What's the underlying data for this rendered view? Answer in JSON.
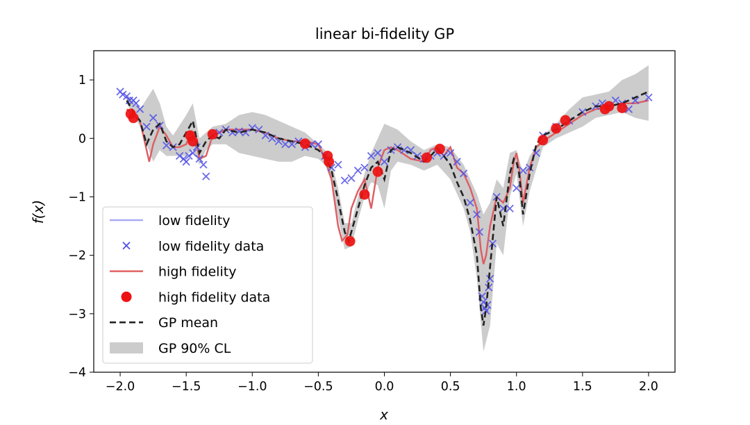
{
  "chart_data": {
    "type": "line",
    "title": "linear bi-fidelity GP",
    "xlabel": "x",
    "ylabel": "f(x)",
    "xlim": [
      -2.2,
      2.2
    ],
    "ylim": [
      -4,
      1.5
    ],
    "xticks": [
      -2.0,
      -1.5,
      -1.0,
      -0.5,
      0.0,
      0.5,
      1.0,
      1.5,
      2.0
    ],
    "xtick_labels": [
      "−2.0",
      "−1.5",
      "−1.0",
      "−0.5",
      "0.0",
      "0.5",
      "1.0",
      "1.5",
      "2.0"
    ],
    "yticks": [
      1,
      0,
      -1,
      -2,
      -3,
      -4
    ],
    "ytick_labels": [
      "1",
      "0",
      "−1",
      "−2",
      "−3",
      "−4"
    ],
    "grid": false,
    "legend_position": "lower-left",
    "colors": {
      "low_fidelity": "#aaaaf2",
      "low_fidelity_data": "#5050e8",
      "high_fidelity": "#e05a5a",
      "high_fidelity_data": "#ee1111",
      "gp_mean": "#222222",
      "gp_band": "#cccccc"
    },
    "series": [
      {
        "name": "low fidelity",
        "style": "line",
        "x": [
          -2.0,
          -1.95,
          -1.9,
          -1.85,
          -1.8,
          -1.75,
          -1.7,
          -1.65,
          -1.6,
          -1.55,
          -1.5,
          -1.45,
          -1.4,
          -1.35,
          -1.3,
          -1.25,
          -1.2,
          -1.1,
          -1.0,
          -0.9,
          -0.8,
          -0.7,
          -0.6,
          -0.5,
          -0.45,
          -0.4,
          -0.35,
          -0.3,
          -0.25,
          -0.2,
          -0.15,
          -0.1,
          -0.05,
          0.0,
          0.05,
          0.1,
          0.2,
          0.3,
          0.4,
          0.45,
          0.5,
          0.55,
          0.6,
          0.65,
          0.7,
          0.72,
          0.74,
          0.76,
          0.78,
          0.8,
          0.82,
          0.85,
          0.88,
          0.9,
          0.95,
          1.0,
          1.05,
          1.1,
          1.15,
          1.2,
          1.3,
          1.4,
          1.5,
          1.6,
          1.7,
          1.8,
          1.9,
          2.0
        ],
        "y": [
          0.78,
          0.7,
          0.6,
          0.3,
          0.1,
          0.35,
          0.25,
          0.0,
          -0.15,
          -0.2,
          -0.4,
          -0.2,
          -0.3,
          -0.65,
          0.1,
          0.1,
          0.15,
          0.1,
          0.18,
          0.1,
          0.0,
          -0.1,
          -0.1,
          -0.3,
          -0.35,
          -0.5,
          -0.7,
          -1.0,
          -0.85,
          -0.65,
          -0.5,
          -0.35,
          -0.25,
          -0.5,
          -0.2,
          -0.2,
          -0.25,
          -0.3,
          -0.25,
          -0.35,
          -0.4,
          -0.8,
          -1.1,
          -1.3,
          -1.8,
          -2.2,
          -2.8,
          -2.9,
          -2.7,
          -2.4,
          -1.8,
          -1.0,
          -1.1,
          -1.3,
          -0.9,
          -0.45,
          -1.1,
          -0.5,
          -0.1,
          0.1,
          0.2,
          0.3,
          0.45,
          0.55,
          0.6,
          0.6,
          0.65,
          0.7
        ]
      },
      {
        "name": "low fidelity data",
        "style": "marker-x",
        "x": [
          -2.0,
          -1.98,
          -1.95,
          -1.93,
          -1.9,
          -1.88,
          -1.85,
          -1.8,
          -1.75,
          -1.7,
          -1.65,
          -1.6,
          -1.55,
          -1.52,
          -1.5,
          -1.48,
          -1.45,
          -1.42,
          -1.4,
          -1.37,
          -1.35,
          -1.3,
          -1.25,
          -1.2,
          -1.15,
          -1.1,
          -1.05,
          -1.0,
          -0.95,
          -0.9,
          -0.85,
          -0.8,
          -0.75,
          -0.7,
          -0.65,
          -0.6,
          -0.55,
          -0.5,
          -0.45,
          -0.4,
          -0.35,
          -0.3,
          -0.25,
          -0.2,
          -0.15,
          -0.1,
          -0.05,
          0.0,
          0.05,
          0.1,
          0.15,
          0.2,
          0.25,
          0.3,
          0.35,
          0.4,
          0.45,
          0.5,
          0.55,
          0.6,
          0.65,
          0.7,
          0.72,
          0.74,
          0.75,
          0.76,
          0.77,
          0.78,
          0.79,
          0.8,
          0.82,
          0.85,
          0.9,
          0.95,
          1.0,
          1.05,
          1.1,
          1.15,
          1.2,
          1.3,
          1.4,
          1.5,
          1.6,
          1.65,
          1.7,
          1.75,
          1.8,
          1.85,
          1.9,
          2.0
        ],
        "y": [
          0.8,
          0.75,
          0.72,
          0.65,
          0.65,
          0.6,
          0.5,
          0.2,
          0.35,
          0.22,
          -0.12,
          -0.15,
          -0.3,
          -0.35,
          -0.4,
          -0.3,
          -0.25,
          -0.15,
          -0.35,
          -0.45,
          -0.65,
          0.05,
          0.1,
          0.15,
          0.1,
          0.12,
          0.1,
          0.18,
          0.15,
          0.05,
          0.0,
          -0.05,
          -0.1,
          -0.1,
          -0.05,
          -0.15,
          -0.1,
          -0.1,
          -0.3,
          -0.5,
          -0.45,
          -0.72,
          -0.68,
          -0.55,
          -0.5,
          -0.3,
          -0.25,
          -0.4,
          -0.2,
          -0.15,
          -0.2,
          -0.2,
          -0.3,
          -0.35,
          -0.3,
          -0.25,
          -0.3,
          -0.25,
          -0.4,
          -0.6,
          -1.1,
          -1.3,
          -1.6,
          -2.7,
          -2.8,
          -2.9,
          -2.95,
          -2.85,
          -2.55,
          -2.4,
          -1.8,
          -1.0,
          -1.2,
          -1.2,
          -0.85,
          -0.55,
          -0.5,
          -0.25,
          0.05,
          0.2,
          0.3,
          0.45,
          0.55,
          0.6,
          0.55,
          0.65,
          0.6,
          0.5,
          0.65,
          0.7
        ]
      },
      {
        "name": "high fidelity",
        "style": "line",
        "x": [
          -1.95,
          -1.9,
          -1.85,
          -1.8,
          -1.78,
          -1.75,
          -1.7,
          -1.65,
          -1.6,
          -1.55,
          -1.5,
          -1.47,
          -1.45,
          -1.42,
          -1.4,
          -1.35,
          -1.3,
          -1.25,
          -1.2,
          -1.1,
          -1.0,
          -0.9,
          -0.8,
          -0.7,
          -0.6,
          -0.5,
          -0.45,
          -0.4,
          -0.35,
          -0.32,
          -0.28,
          -0.25,
          -0.2,
          -0.15,
          -0.1,
          -0.05,
          0.0,
          0.05,
          0.1,
          0.2,
          0.3,
          0.35,
          0.4,
          0.45,
          0.5,
          0.55,
          0.6,
          0.65,
          0.7,
          0.73,
          0.75,
          0.77,
          0.8,
          0.85,
          0.9,
          0.95,
          0.98,
          1.0,
          1.02,
          1.05,
          1.1,
          1.15,
          1.2,
          1.3,
          1.4,
          1.5,
          1.6,
          1.7,
          1.8,
          1.9,
          2.0
        ],
        "y": [
          0.5,
          0.4,
          0.3,
          -0.2,
          -0.4,
          -0.1,
          0.2,
          0.05,
          -0.15,
          -0.15,
          -0.1,
          0.1,
          0.05,
          -0.1,
          -0.35,
          -0.3,
          0.05,
          0.1,
          0.15,
          0.15,
          0.15,
          0.1,
          0.0,
          -0.05,
          -0.05,
          -0.1,
          -0.35,
          -0.7,
          -1.5,
          -1.75,
          -1.65,
          -1.2,
          -0.9,
          -0.7,
          -1.2,
          -0.5,
          -0.2,
          -0.15,
          -0.2,
          -0.35,
          -0.4,
          -0.2,
          -0.15,
          -0.3,
          -0.15,
          -0.5,
          -0.6,
          -0.85,
          -1.2,
          -1.9,
          -2.15,
          -2.0,
          -1.5,
          -1.0,
          -1.1,
          -0.85,
          -0.4,
          -0.25,
          -0.5,
          -1.1,
          -0.5,
          -0.15,
          -0.05,
          0.1,
          0.25,
          0.4,
          0.5,
          0.55,
          0.6,
          0.6,
          0.65
        ]
      },
      {
        "name": "high fidelity data",
        "style": "marker-dot",
        "x": [
          -1.92,
          -1.9,
          -1.47,
          -1.45,
          -1.3,
          -0.6,
          -0.43,
          -0.42,
          -0.26,
          -0.15,
          -0.05,
          0.32,
          0.42,
          1.2,
          1.3,
          1.37,
          1.67,
          1.7,
          1.8
        ],
        "y": [
          0.42,
          0.35,
          0.05,
          -0.05,
          0.07,
          -0.09,
          -0.3,
          -0.4,
          -1.76,
          -0.96,
          -0.57,
          -0.33,
          -0.18,
          -0.03,
          0.17,
          0.31,
          0.5,
          0.55,
          0.52
        ]
      },
      {
        "name": "GP mean",
        "style": "dashed",
        "x": [
          -1.95,
          -1.9,
          -1.85,
          -1.8,
          -1.75,
          -1.7,
          -1.65,
          -1.6,
          -1.55,
          -1.5,
          -1.45,
          -1.4,
          -1.35,
          -1.3,
          -1.25,
          -1.2,
          -1.1,
          -1.0,
          -0.9,
          -0.8,
          -0.7,
          -0.6,
          -0.5,
          -0.45,
          -0.4,
          -0.35,
          -0.3,
          -0.27,
          -0.25,
          -0.2,
          -0.15,
          -0.1,
          -0.05,
          0.0,
          0.05,
          0.1,
          0.2,
          0.3,
          0.35,
          0.4,
          0.45,
          0.5,
          0.55,
          0.6,
          0.65,
          0.7,
          0.73,
          0.75,
          0.77,
          0.8,
          0.85,
          0.9,
          0.95,
          0.98,
          1.0,
          1.02,
          1.05,
          1.1,
          1.15,
          1.2,
          1.3,
          1.4,
          1.5,
          1.6,
          1.7,
          1.8,
          1.9,
          2.0
        ],
        "y": [
          0.65,
          0.45,
          0.3,
          -0.1,
          0.15,
          0.25,
          -0.05,
          -0.15,
          -0.1,
          0.1,
          0.3,
          -0.25,
          -0.05,
          0.05,
          0.0,
          0.15,
          0.1,
          0.15,
          0.1,
          0.0,
          -0.05,
          -0.1,
          -0.2,
          -0.3,
          -0.55,
          -1.05,
          -1.6,
          -1.76,
          -1.6,
          -1.2,
          -0.8,
          -0.5,
          -0.4,
          -0.7,
          -0.2,
          -0.15,
          -0.25,
          -0.4,
          -0.3,
          -0.18,
          -0.3,
          -0.45,
          -0.75,
          -1.0,
          -1.4,
          -2.0,
          -2.9,
          -3.2,
          -2.9,
          -2.2,
          -1.0,
          -1.5,
          -0.6,
          -0.35,
          -0.4,
          -0.6,
          -1.3,
          -0.6,
          -0.1,
          0.05,
          0.15,
          0.3,
          0.45,
          0.55,
          0.55,
          0.6,
          0.7,
          0.8
        ]
      },
      {
        "name": "GP 90% CL",
        "style": "band",
        "x": [
          -1.95,
          -1.85,
          -1.75,
          -1.7,
          -1.65,
          -1.6,
          -1.5,
          -1.45,
          -1.4,
          -1.35,
          -1.3,
          -1.2,
          -1.1,
          -1.0,
          -0.9,
          -0.8,
          -0.7,
          -0.6,
          -0.5,
          -0.45,
          -0.4,
          -0.35,
          -0.3,
          -0.25,
          -0.2,
          -0.15,
          -0.1,
          -0.05,
          0.0,
          0.05,
          0.1,
          0.2,
          0.3,
          0.4,
          0.5,
          0.6,
          0.65,
          0.7,
          0.75,
          0.8,
          0.85,
          0.9,
          0.95,
          1.0,
          1.05,
          1.1,
          1.2,
          1.3,
          1.4,
          1.5,
          1.6,
          1.7,
          1.8,
          1.9,
          2.0
        ],
        "upper": [
          0.75,
          0.5,
          0.85,
          0.6,
          0.2,
          0.05,
          0.4,
          0.6,
          0.0,
          0.1,
          0.2,
          0.25,
          0.4,
          0.45,
          0.4,
          0.3,
          0.2,
          0.1,
          -0.1,
          -0.2,
          -0.4,
          -0.85,
          -1.45,
          -1.45,
          -1.0,
          -0.6,
          -0.25,
          0.0,
          0.25,
          0.2,
          0.15,
          -0.05,
          -0.2,
          -0.1,
          -0.15,
          -0.45,
          -0.7,
          -0.95,
          -1.3,
          -1.1,
          -0.7,
          -0.85,
          -0.25,
          -0.2,
          -0.6,
          -0.3,
          0.05,
          0.25,
          0.5,
          0.7,
          0.75,
          0.8,
          1.0,
          1.1,
          1.25
        ],
        "lower": [
          0.6,
          0.2,
          -0.4,
          -0.2,
          -0.3,
          -0.3,
          -0.3,
          -0.2,
          -0.45,
          -0.2,
          -0.1,
          -0.1,
          -0.25,
          -0.3,
          -0.35,
          -0.4,
          -0.4,
          -0.3,
          -0.35,
          -0.45,
          -0.75,
          -1.35,
          -1.9,
          -1.85,
          -1.4,
          -1.0,
          -0.75,
          -0.8,
          -1.2,
          -0.55,
          -0.4,
          -0.45,
          -0.55,
          -0.45,
          -0.7,
          -1.2,
          -1.6,
          -2.4,
          -3.65,
          -3.2,
          -1.8,
          -2.0,
          -1.0,
          -0.6,
          -1.5,
          -0.9,
          -0.15,
          0.0,
          0.1,
          0.2,
          0.35,
          0.4,
          0.45,
          0.35,
          0.3
        ]
      }
    ]
  }
}
